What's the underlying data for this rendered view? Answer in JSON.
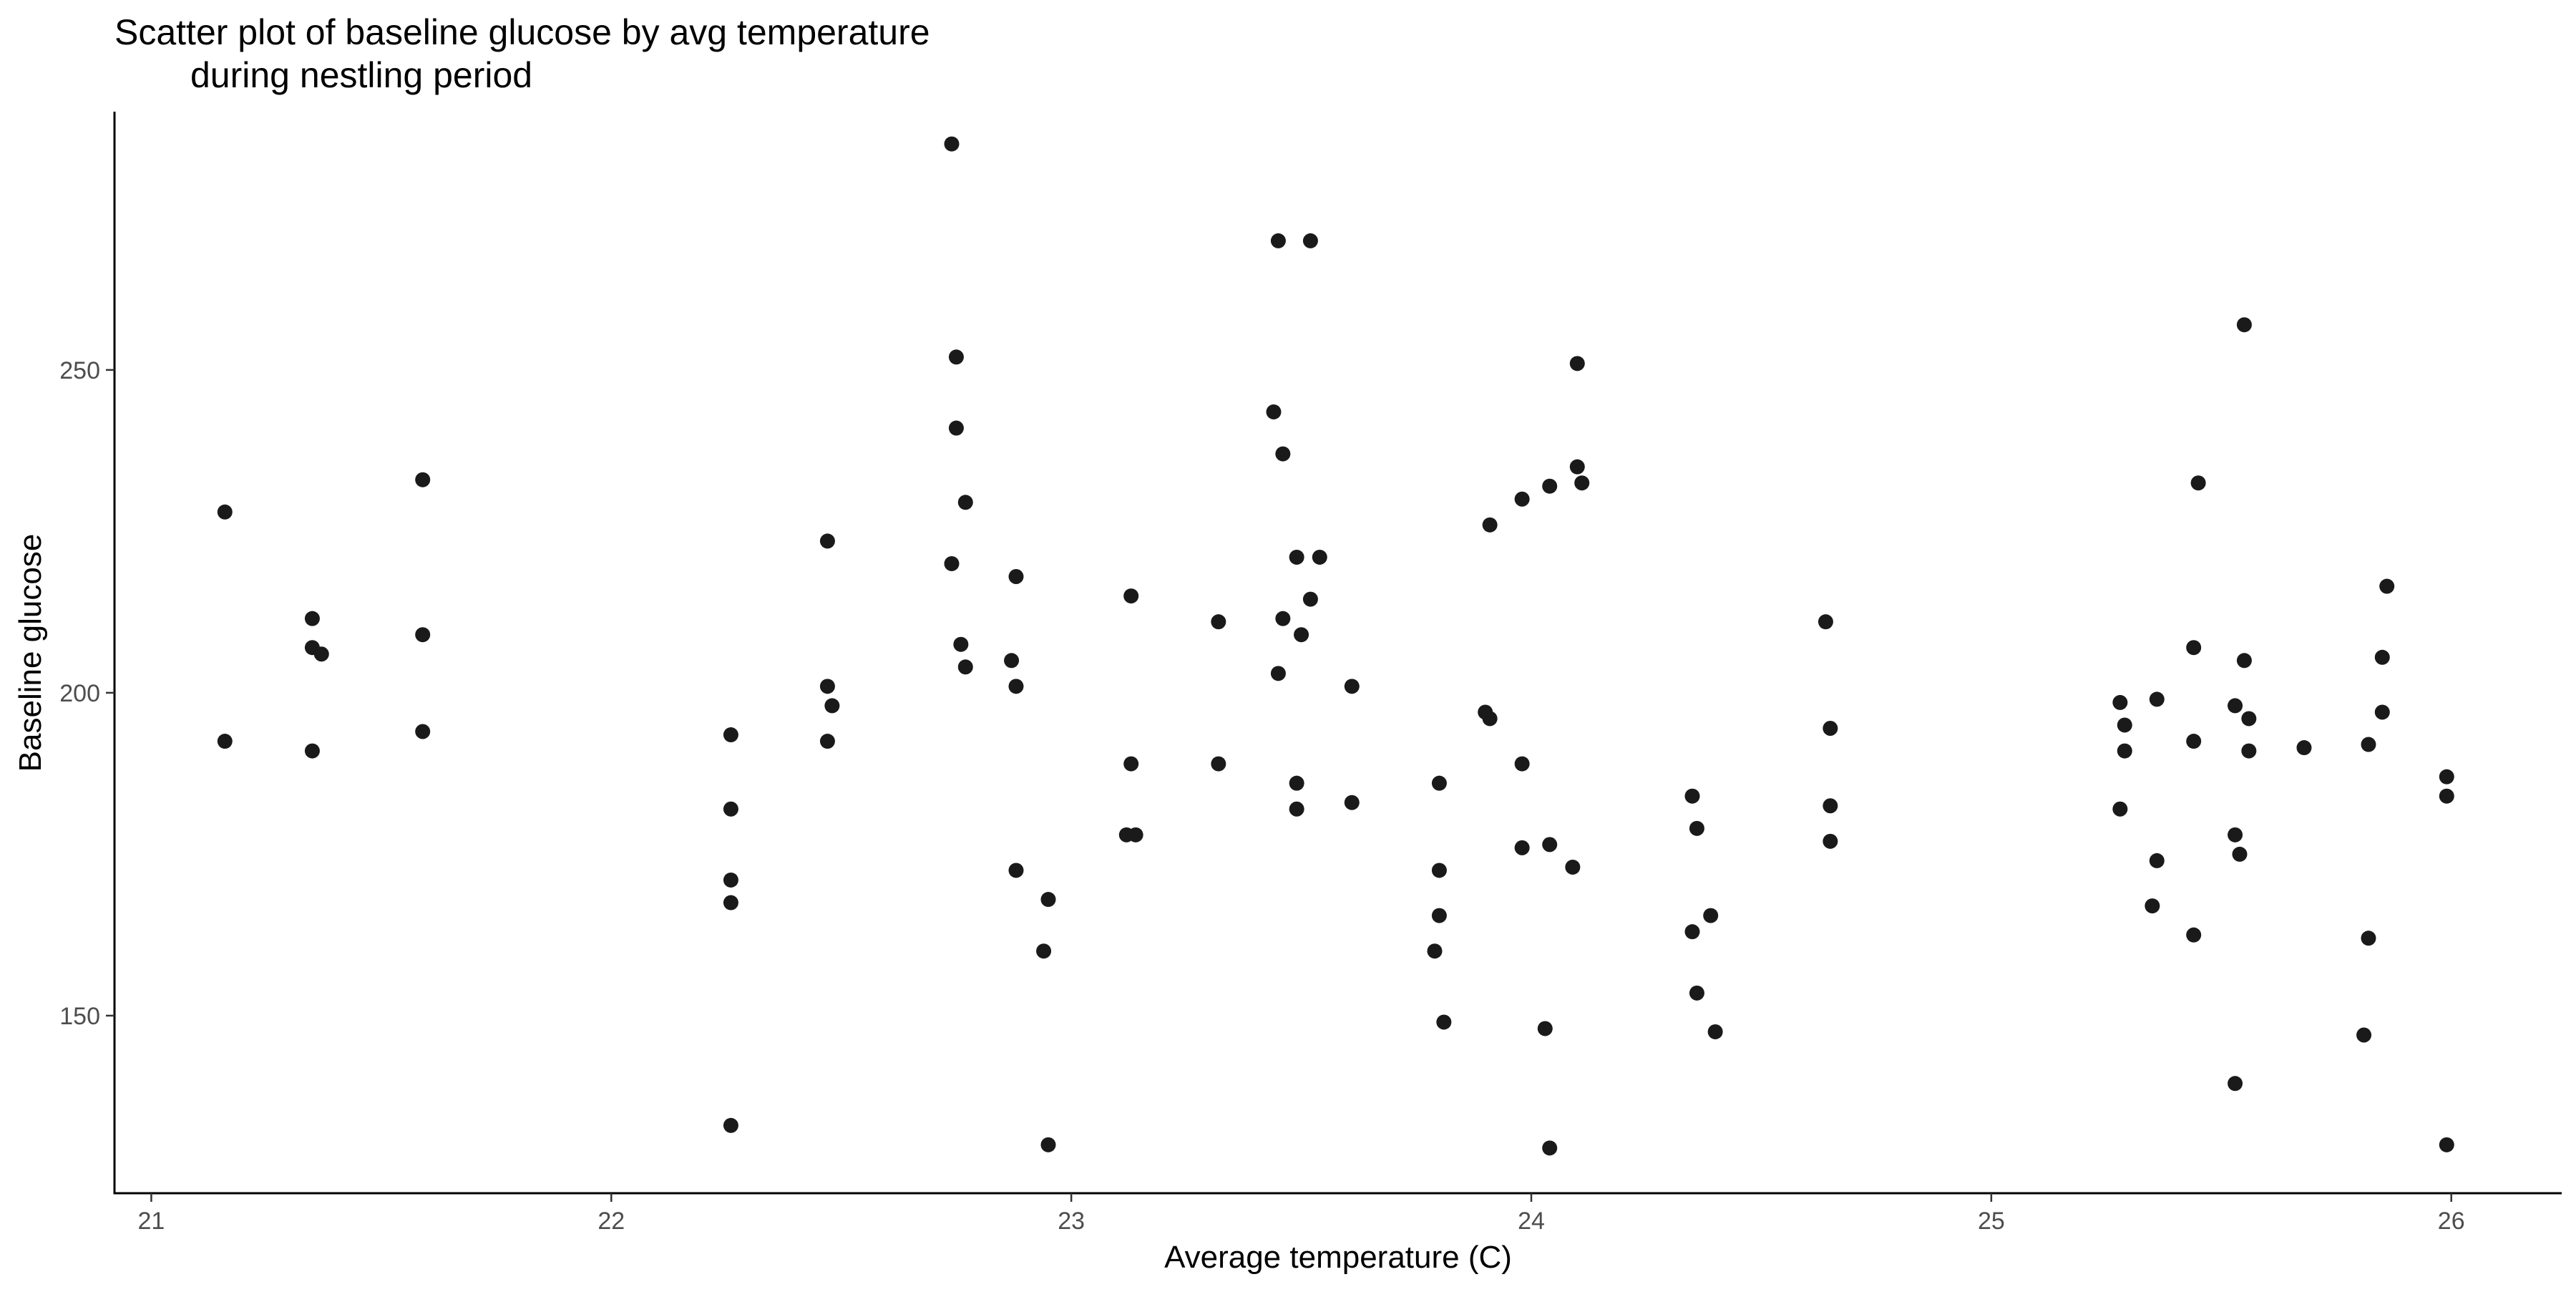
{
  "chart_data": {
    "type": "scatter",
    "title_lines": [
      "Scatter plot of baseline glucose by avg temperature",
      "during nestling period"
    ],
    "xlabel": "Average temperature (C)",
    "ylabel": "Baseline glucose",
    "xlim": [
      20.92,
      26.24
    ],
    "ylim": [
      122.5,
      290
    ],
    "x_ticks": [
      21,
      22,
      23,
      24,
      25,
      26
    ],
    "y_ticks": [
      150,
      200,
      250
    ],
    "grid": false,
    "legend": "none",
    "point_color": "#1a1a1a",
    "points": [
      {
        "x": 21.16,
        "y": 228
      },
      {
        "x": 21.16,
        "y": 192.5
      },
      {
        "x": 21.35,
        "y": 211.5
      },
      {
        "x": 21.35,
        "y": 207
      },
      {
        "x": 21.37,
        "y": 206
      },
      {
        "x": 21.35,
        "y": 191
      },
      {
        "x": 21.59,
        "y": 233
      },
      {
        "x": 21.59,
        "y": 209
      },
      {
        "x": 21.59,
        "y": 194
      },
      {
        "x": 22.26,
        "y": 193.5
      },
      {
        "x": 22.26,
        "y": 182
      },
      {
        "x": 22.26,
        "y": 171
      },
      {
        "x": 22.26,
        "y": 167.5
      },
      {
        "x": 22.26,
        "y": 133
      },
      {
        "x": 22.47,
        "y": 223.5
      },
      {
        "x": 22.47,
        "y": 201
      },
      {
        "x": 22.48,
        "y": 198
      },
      {
        "x": 22.47,
        "y": 192.5
      },
      {
        "x": 22.74,
        "y": 285
      },
      {
        "x": 22.75,
        "y": 252
      },
      {
        "x": 22.75,
        "y": 241
      },
      {
        "x": 22.77,
        "y": 229.5
      },
      {
        "x": 22.74,
        "y": 220
      },
      {
        "x": 22.76,
        "y": 207.5
      },
      {
        "x": 22.77,
        "y": 204
      },
      {
        "x": 22.88,
        "y": 218
      },
      {
        "x": 22.87,
        "y": 205
      },
      {
        "x": 22.88,
        "y": 201
      },
      {
        "x": 22.88,
        "y": 172.5
      },
      {
        "x": 22.95,
        "y": 168
      },
      {
        "x": 22.94,
        "y": 160
      },
      {
        "x": 22.95,
        "y": 130
      },
      {
        "x": 23.13,
        "y": 215
      },
      {
        "x": 23.13,
        "y": 189
      },
      {
        "x": 23.12,
        "y": 178
      },
      {
        "x": 23.14,
        "y": 178
      },
      {
        "x": 23.32,
        "y": 211
      },
      {
        "x": 23.32,
        "y": 189
      },
      {
        "x": 23.45,
        "y": 270
      },
      {
        "x": 23.44,
        "y": 243.5
      },
      {
        "x": 23.46,
        "y": 237
      },
      {
        "x": 23.46,
        "y": 211.5
      },
      {
        "x": 23.45,
        "y": 203
      },
      {
        "x": 23.52,
        "y": 270
      },
      {
        "x": 23.49,
        "y": 221
      },
      {
        "x": 23.54,
        "y": 221
      },
      {
        "x": 23.5,
        "y": 209
      },
      {
        "x": 23.52,
        "y": 214.5
      },
      {
        "x": 23.49,
        "y": 186
      },
      {
        "x": 23.49,
        "y": 182
      },
      {
        "x": 23.61,
        "y": 201
      },
      {
        "x": 23.61,
        "y": 183
      },
      {
        "x": 23.8,
        "y": 186
      },
      {
        "x": 23.8,
        "y": 172.5
      },
      {
        "x": 23.8,
        "y": 165.5
      },
      {
        "x": 23.79,
        "y": 160
      },
      {
        "x": 23.81,
        "y": 149
      },
      {
        "x": 23.91,
        "y": 226
      },
      {
        "x": 23.9,
        "y": 197
      },
      {
        "x": 23.91,
        "y": 196
      },
      {
        "x": 23.98,
        "y": 230
      },
      {
        "x": 23.98,
        "y": 189
      },
      {
        "x": 23.98,
        "y": 176
      },
      {
        "x": 24.04,
        "y": 232
      },
      {
        "x": 24.04,
        "y": 176.5
      },
      {
        "x": 24.03,
        "y": 148
      },
      {
        "x": 24.04,
        "y": 129.5
      },
      {
        "x": 24.1,
        "y": 251
      },
      {
        "x": 24.1,
        "y": 235
      },
      {
        "x": 24.11,
        "y": 232.5
      },
      {
        "x": 24.09,
        "y": 173
      },
      {
        "x": 24.35,
        "y": 184
      },
      {
        "x": 24.36,
        "y": 179
      },
      {
        "x": 24.35,
        "y": 163
      },
      {
        "x": 24.36,
        "y": 153.5
      },
      {
        "x": 24.39,
        "y": 165.5
      },
      {
        "x": 24.4,
        "y": 147.5
      },
      {
        "x": 24.64,
        "y": 211
      },
      {
        "x": 24.65,
        "y": 194.5
      },
      {
        "x": 24.65,
        "y": 182.5
      },
      {
        "x": 24.65,
        "y": 177
      },
      {
        "x": 25.28,
        "y": 198.5
      },
      {
        "x": 25.29,
        "y": 195
      },
      {
        "x": 25.29,
        "y": 191
      },
      {
        "x": 25.28,
        "y": 182
      },
      {
        "x": 25.36,
        "y": 199
      },
      {
        "x": 25.36,
        "y": 174
      },
      {
        "x": 25.35,
        "y": 167
      },
      {
        "x": 25.45,
        "y": 232.5
      },
      {
        "x": 25.44,
        "y": 207
      },
      {
        "x": 25.44,
        "y": 192.5
      },
      {
        "x": 25.44,
        "y": 162.5
      },
      {
        "x": 25.55,
        "y": 257
      },
      {
        "x": 25.55,
        "y": 205
      },
      {
        "x": 25.53,
        "y": 198
      },
      {
        "x": 25.56,
        "y": 196
      },
      {
        "x": 25.56,
        "y": 191
      },
      {
        "x": 25.53,
        "y": 178
      },
      {
        "x": 25.54,
        "y": 175
      },
      {
        "x": 25.53,
        "y": 139.5
      },
      {
        "x": 25.68,
        "y": 191.5
      },
      {
        "x": 25.86,
        "y": 216.5
      },
      {
        "x": 25.85,
        "y": 205.5
      },
      {
        "x": 25.85,
        "y": 197
      },
      {
        "x": 25.82,
        "y": 192
      },
      {
        "x": 25.82,
        "y": 162
      },
      {
        "x": 25.81,
        "y": 147
      },
      {
        "x": 25.99,
        "y": 187
      },
      {
        "x": 25.99,
        "y": 184
      },
      {
        "x": 25.99,
        "y": 130
      }
    ]
  }
}
